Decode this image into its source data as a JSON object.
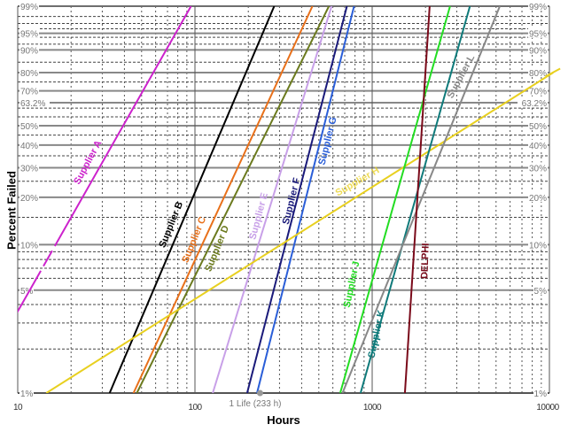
{
  "chart_data": {
    "type": "line",
    "title": "",
    "xlabel": "Hours",
    "ylabel": "Percent Failed",
    "xscale": "log",
    "yscale": "weibull",
    "xlim": [
      10,
      10000
    ],
    "ylim": [
      1,
      99
    ],
    "grid": true,
    "x_ticks": [
      "10",
      "100",
      "1000",
      "10000"
    ],
    "y_ticks": [
      "1%",
      "5%",
      "10%",
      "20%",
      "30%",
      "40%",
      "50%",
      "63.2%",
      "70%",
      "80%",
      "90%",
      "95%",
      "99%"
    ],
    "annotation": "1 Life (233 h)",
    "series": [
      {
        "name": "Supplier A",
        "color": "#cc22cc",
        "points": [
          [
            9.6,
            3.3
          ],
          [
            95,
            99
          ]
        ]
      },
      {
        "name": "Supplier B",
        "color": "#000000",
        "points": [
          [
            33,
            1
          ],
          [
            280,
            99
          ]
        ]
      },
      {
        "name": "Supplier C",
        "color": "#e8701a",
        "points": [
          [
            45,
            1
          ],
          [
            460,
            99
          ]
        ]
      },
      {
        "name": "Supplier D",
        "color": "#6b7a1e",
        "points": [
          [
            47,
            1
          ],
          [
            570,
            99
          ]
        ]
      },
      {
        "name": "Supplier E",
        "color": "#c8a0e8",
        "points": [
          [
            126,
            1
          ],
          [
            590,
            99
          ]
        ]
      },
      {
        "name": "Supplier F",
        "color": "#1a1a7a",
        "points": [
          [
            197,
            1
          ],
          [
            720,
            99
          ]
        ]
      },
      {
        "name": "Supplier G",
        "color": "#2a5ed8",
        "points": [
          [
            224,
            1
          ],
          [
            790,
            99
          ]
        ]
      },
      {
        "name": "Supplier H",
        "color": "#e8d020",
        "points": [
          [
            14.5,
            1
          ],
          [
            10500,
            80
          ]
        ]
      },
      {
        "name": "Supplier J",
        "color": "#22dd22",
        "points": [
          [
            660,
            1
          ],
          [
            2750,
            99
          ]
        ]
      },
      {
        "name": "Supplier K",
        "color": "#0f7a7a",
        "points": [
          [
            860,
            1
          ],
          [
            3560,
            99
          ]
        ]
      },
      {
        "name": "Supplier L",
        "color": "#888888",
        "points": [
          [
            680,
            1
          ],
          [
            5250,
            99
          ]
        ]
      },
      {
        "name": "DELPHI",
        "color": "#7a0a1a",
        "points": [
          [
            1530,
            1
          ],
          [
            2110,
            99
          ]
        ]
      }
    ]
  },
  "axes": {
    "xlabel": "Hours",
    "ylabel": "Percent Failed",
    "annotation": "1 Life (233 h)"
  }
}
